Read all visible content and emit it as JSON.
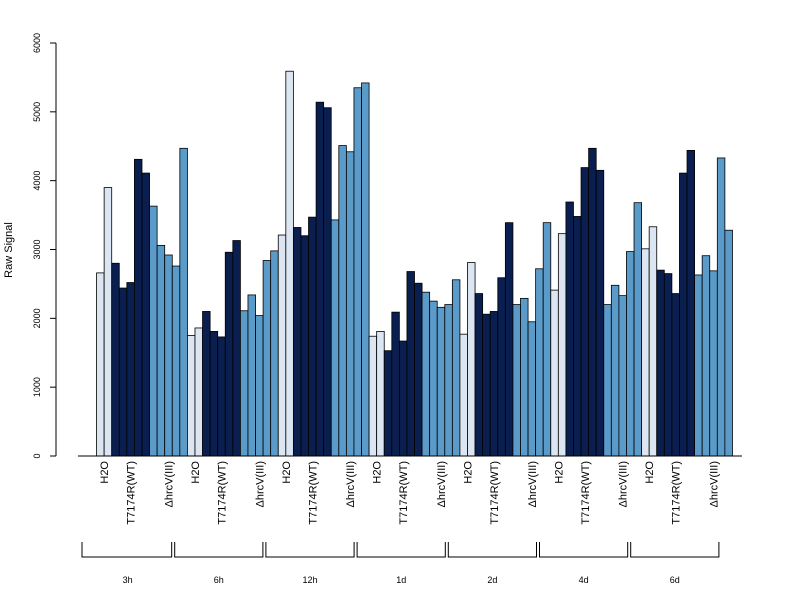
{
  "chart_data": {
    "type": "bar",
    "ylabel": "Raw Signal",
    "ylim": [
      0,
      6000
    ],
    "y_ticks": [
      0,
      1000,
      2000,
      3000,
      4000,
      5000,
      6000
    ],
    "treatments": [
      "H2O",
      "T7174R(WT)",
      "ΔhrcV(III)"
    ],
    "colors": {
      "H2O": "#dce6f2",
      "T7174R(WT)": "#0a1f4f",
      "ΔhrcV(III)": "#5b9bca"
    },
    "groups": [
      {
        "time": "3h",
        "values": {
          "H2O": [
            2660,
            3900
          ],
          "T7174R(WT)": [
            2800,
            2440,
            2520,
            4310,
            4110
          ],
          "ΔhrcV(III)": [
            3630,
            3060,
            2920,
            2760,
            4470
          ]
        }
      },
      {
        "time": "6h",
        "values": {
          "H2O": [
            1750,
            1860
          ],
          "T7174R(WT)": [
            2100,
            1810,
            1730,
            2960,
            3130
          ],
          "ΔhrcV(III)": [
            2110,
            2340,
            2040,
            2840,
            2980
          ]
        }
      },
      {
        "time": "12h",
        "values": {
          "H2O": [
            3210,
            5590
          ],
          "T7174R(WT)": [
            3320,
            3200,
            3470,
            5140,
            5060
          ],
          "ΔhrcV(III)": [
            3430,
            4510,
            4420,
            5350,
            5420
          ]
        }
      },
      {
        "time": "1d",
        "values": {
          "H2O": [
            1740,
            1810
          ],
          "T7174R(WT)": [
            1530,
            2090,
            1670,
            2680,
            2510
          ],
          "ΔhrcV(III)": [
            2380,
            2250,
            2160,
            2200,
            2560
          ]
        }
      },
      {
        "time": "2d",
        "values": {
          "H2O": [
            1770,
            2810
          ],
          "T7174R(WT)": [
            2360,
            2060,
            2100,
            2590,
            3390
          ],
          "ΔhrcV(III)": [
            2200,
            2290,
            1950,
            2720,
            3390
          ]
        }
      },
      {
        "time": "4d",
        "values": {
          "H2O": [
            2410,
            3230
          ],
          "T7174R(WT)": [
            3690,
            3480,
            4190,
            4470,
            4150
          ],
          "ΔhrcV(III)": [
            2200,
            2480,
            2330,
            2970,
            3680
          ]
        }
      },
      {
        "time": "6d",
        "values": {
          "H2O": [
            3010,
            3330
          ],
          "T7174R(WT)": [
            2700,
            2650,
            2360,
            4110,
            4440
          ],
          "ΔhrcV(III)": [
            2630,
            2910,
            2690,
            4330,
            3280
          ]
        }
      }
    ]
  }
}
